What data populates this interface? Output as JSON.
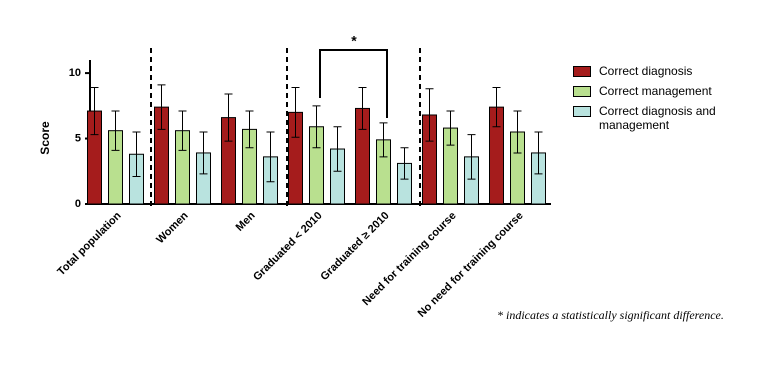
{
  "chart_data": {
    "type": "bar",
    "y_label": "Score",
    "categories": [
      "Total population",
      "Women",
      "Men",
      "Graduated < 2010",
      "Graduated ≥ 2010",
      "Need for training course",
      "No need for training course"
    ],
    "series": [
      {
        "name": "Correct diagnosis",
        "color": "#a51c1c",
        "values": [
          7.1,
          7.4,
          6.6,
          7.0,
          7.3,
          6.8,
          7.4
        ],
        "errors": [
          1.8,
          1.7,
          1.8,
          1.9,
          1.6,
          2.0,
          1.5
        ]
      },
      {
        "name": "Correct management",
        "color": "#b9e08f",
        "values": [
          5.6,
          5.6,
          5.7,
          5.9,
          4.9,
          5.8,
          5.5
        ],
        "errors": [
          1.5,
          1.5,
          1.4,
          1.6,
          1.3,
          1.3,
          1.6
        ]
      },
      {
        "name": "Correct diagnosis and management",
        "color": "#b9e3df",
        "values": [
          3.8,
          3.9,
          3.6,
          4.2,
          3.1,
          3.6,
          3.9
        ],
        "errors": [
          1.7,
          1.6,
          1.9,
          1.7,
          1.2,
          1.7,
          1.6
        ]
      }
    ],
    "ylim": [
      0,
      11
    ],
    "yticks": [
      0,
      5,
      10
    ],
    "significance_label": "*",
    "footnote": "* indicates a statistically significant difference."
  }
}
